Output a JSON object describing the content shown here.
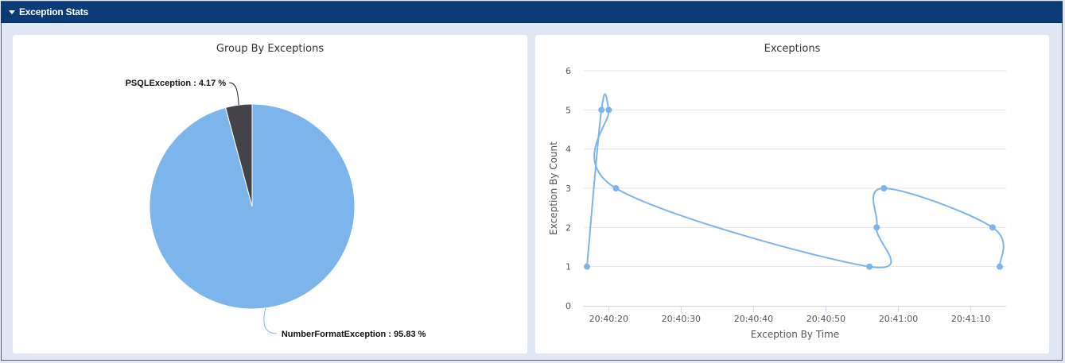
{
  "header": {
    "title": "Exception Stats"
  },
  "colors": {
    "header_bg": "#0b3a78",
    "series": "#7cb5ec",
    "dark_slice": "#434348"
  },
  "chart_data": [
    {
      "type": "pie",
      "title": "Group By Exceptions",
      "slices": [
        {
          "name": "NumberFormatException",
          "value": 95.83,
          "label": "NumberFormatException : 95.83 %",
          "color": "#7cb5ec"
        },
        {
          "name": "PSQLException",
          "value": 4.17,
          "label": "PSQLException : 4.17 %",
          "color": "#434348"
        }
      ]
    },
    {
      "type": "line",
      "title": "Exceptions",
      "xlabel": "Exception By Time",
      "ylabel": "Exception By Count",
      "ylim": [
        0,
        6
      ],
      "yticks": [
        "0",
        "1",
        "2",
        "3",
        "4",
        "5",
        "6"
      ],
      "xticks": [
        "20:40:20",
        "20:40:30",
        "20:40:40",
        "20:40:50",
        "20:41:00",
        "20:41:10"
      ],
      "xlim": [
        "20:40:17",
        "20:41:14"
      ],
      "grid": true,
      "series": [
        {
          "color": "#7cb5ec",
          "points": [
            {
              "x": "20:40:17",
              "y": 1
            },
            {
              "x": "20:40:19",
              "y": 5
            },
            {
              "x": "20:40:20",
              "y": 5
            },
            {
              "x": "20:40:21",
              "y": 3
            },
            {
              "x": "20:40:56",
              "y": 1
            },
            {
              "x": "20:40:57",
              "y": 2
            },
            {
              "x": "20:40:58",
              "y": 3
            },
            {
              "x": "20:41:13",
              "y": 2
            },
            {
              "x": "20:41:14",
              "y": 1
            }
          ]
        }
      ]
    }
  ]
}
